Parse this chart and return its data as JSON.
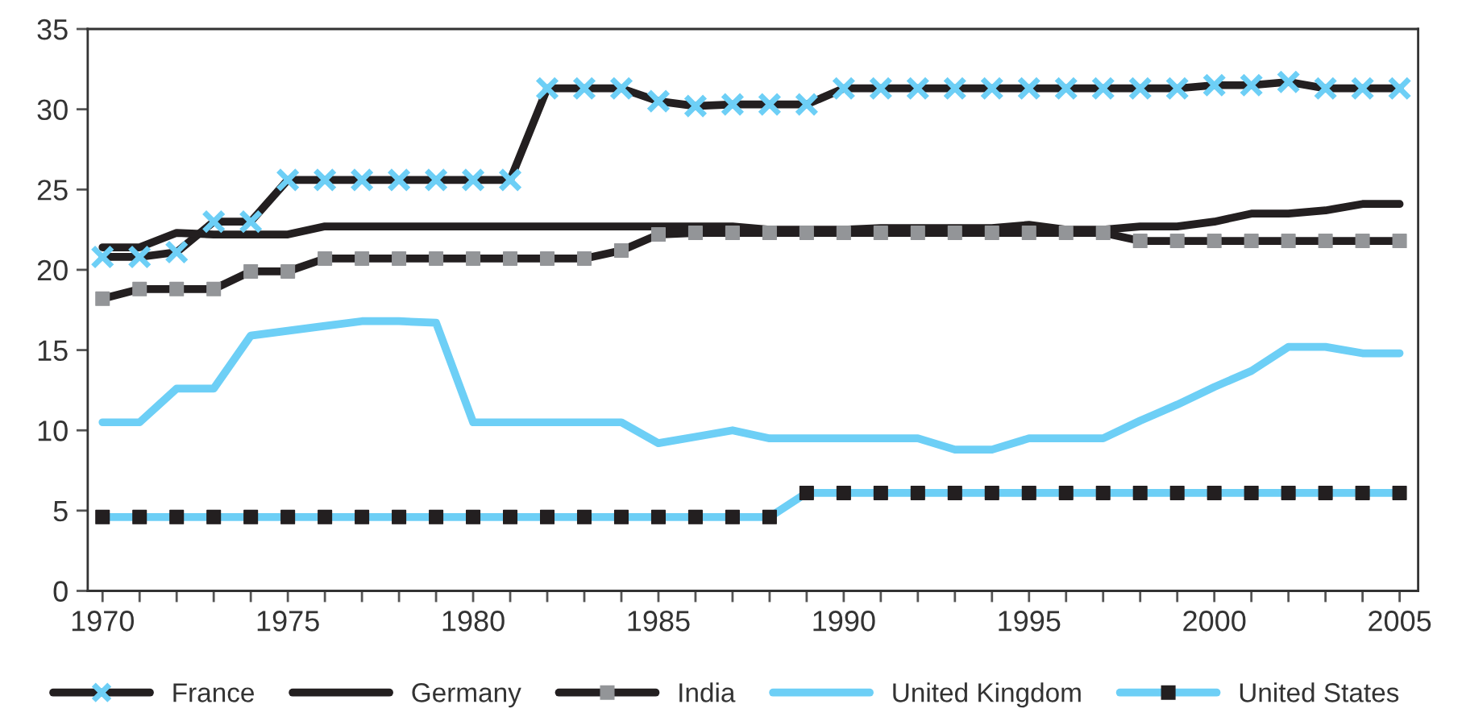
{
  "chart_data": {
    "type": "line",
    "x": [
      1970,
      1971,
      1972,
      1973,
      1974,
      1975,
      1976,
      1977,
      1978,
      1979,
      1980,
      1981,
      1982,
      1983,
      1984,
      1985,
      1986,
      1987,
      1988,
      1989,
      1990,
      1991,
      1992,
      1993,
      1994,
      1995,
      1996,
      1997,
      1998,
      1999,
      2000,
      2001,
      2002,
      2003,
      2004,
      2005
    ],
    "series": [
      {
        "name": "France",
        "color": "#231f20",
        "marker": "cross",
        "colors": [
          "#6dcff6",
          "#6dcff6",
          "#6dcff6",
          "#6dcff6",
          "#6dcff6",
          "#6dcff6",
          "#6dcff6",
          "#6dcff6",
          "#6dcff6",
          "#6dcff6",
          "#6dcff6",
          "#6dcff6",
          "#6dcff6",
          "#6dcff6",
          "#6dcff6",
          "#6dcff6",
          "#6dcff6",
          "#6dcff6",
          "#6dcff6",
          "#6dcff6",
          "#6dcff6",
          "#6dcff6",
          "#6dcff6",
          "#6dcff6",
          "#6dcff6",
          "#6dcff6",
          "#6dcff6",
          "#6dcff6",
          "#6dcff6",
          "#6dcff6",
          "#6dcff6",
          "#6dcff6",
          "#6dcff6",
          "#6dcff6",
          "#6dcff6",
          "#6dcff6"
        ],
        "values": [
          20.8,
          20.8,
          21.1,
          23.0,
          23.0,
          25.6,
          25.6,
          25.6,
          25.6,
          25.6,
          25.6,
          25.6,
          31.3,
          31.3,
          31.3,
          30.5,
          30.2,
          30.3,
          30.3,
          30.3,
          31.3,
          31.3,
          31.3,
          31.3,
          31.3,
          31.3,
          31.3,
          31.3,
          31.3,
          31.3,
          31.5,
          31.5,
          31.7,
          31.3,
          31.3,
          31.3
        ]
      },
      {
        "name": "Germany",
        "color": "#231f20",
        "marker": "none",
        "values": [
          21.4,
          21.4,
          22.3,
          22.2,
          22.2,
          22.2,
          22.7,
          22.7,
          22.7,
          22.7,
          22.7,
          22.7,
          22.7,
          22.7,
          22.7,
          22.7,
          22.7,
          22.7,
          22.5,
          22.5,
          22.5,
          22.6,
          22.6,
          22.6,
          22.6,
          22.8,
          22.5,
          22.5,
          22.7,
          22.7,
          23.0,
          23.5,
          23.5,
          23.7,
          24.1,
          24.1
        ]
      },
      {
        "name": "India",
        "color": "#231f20",
        "marker": "square",
        "colors": [
          "#939598",
          "#939598",
          "#939598",
          "#939598",
          "#939598",
          "#939598",
          "#939598",
          "#939598",
          "#939598",
          "#939598",
          "#939598",
          "#939598",
          "#939598",
          "#939598",
          "#939598",
          "#939598",
          "#939598",
          "#939598",
          "#939598",
          "#939598",
          "#939598",
          "#939598",
          "#939598",
          "#939598",
          "#939598",
          "#939598",
          "#939598",
          "#939598",
          "#939598",
          "#939598",
          "#939598",
          "#939598",
          "#939598",
          "#939598",
          "#939598",
          "#939598"
        ],
        "values": [
          18.2,
          18.8,
          18.8,
          18.8,
          19.9,
          19.9,
          20.7,
          20.7,
          20.7,
          20.7,
          20.7,
          20.7,
          20.7,
          20.7,
          21.2,
          22.2,
          22.3,
          22.3,
          22.3,
          22.3,
          22.3,
          22.3,
          22.3,
          22.3,
          22.3,
          22.3,
          22.3,
          22.3,
          21.8,
          21.8,
          21.8,
          21.8,
          21.8,
          21.8,
          21.8,
          21.8
        ]
      },
      {
        "name": "United Kingdom",
        "color": "#6dcff6",
        "marker": "none",
        "values": [
          10.5,
          10.5,
          12.6,
          12.6,
          15.9,
          16.2,
          16.5,
          16.8,
          16.8,
          16.7,
          10.5,
          10.5,
          10.5,
          10.5,
          10.5,
          9.2,
          9.6,
          10.0,
          9.5,
          9.5,
          9.5,
          9.5,
          9.5,
          8.8,
          8.8,
          9.5,
          9.5,
          9.5,
          10.6,
          11.6,
          12.7,
          13.7,
          15.2,
          15.2,
          14.8,
          14.8
        ]
      },
      {
        "name": "United States",
        "color": "#6dcff6",
        "marker": "square",
        "colors": [
          "#231f20",
          "#231f20",
          "#231f20",
          "#231f20",
          "#231f20",
          "#231f20",
          "#231f20",
          "#231f20",
          "#231f20",
          "#231f20",
          "#231f20",
          "#231f20",
          "#231f20",
          "#231f20",
          "#231f20",
          "#231f20",
          "#231f20",
          "#231f20",
          "#231f20",
          "#231f20",
          "#231f20",
          "#231f20",
          "#231f20",
          "#231f20",
          "#231f20",
          "#231f20",
          "#231f20",
          "#231f20",
          "#231f20",
          "#231f20",
          "#231f20",
          "#231f20",
          "#231f20",
          "#231f20",
          "#231f20",
          "#231f20"
        ],
        "values": [
          4.6,
          4.6,
          4.6,
          4.6,
          4.6,
          4.6,
          4.6,
          4.6,
          4.6,
          4.6,
          4.6,
          4.6,
          4.6,
          4.6,
          4.6,
          4.6,
          4.6,
          4.6,
          4.6,
          6.1,
          6.1,
          6.1,
          6.1,
          6.1,
          6.1,
          6.1,
          6.1,
          6.1,
          6.1,
          6.1,
          6.1,
          6.1,
          6.1,
          6.1,
          6.1,
          6.1
        ]
      }
    ],
    "xlim": [
      1969.6,
      2005.5
    ],
    "xticks": [
      1970,
      {
        "value": 1971,
        "label": null
      },
      {
        "value": 1972,
        "label": null
      },
      {
        "value": 1973,
        "label": null
      },
      {
        "value": 1974,
        "label": null
      },
      1975,
      {
        "value": 1976,
        "label": null
      },
      {
        "value": 1977,
        "label": null
      },
      {
        "value": 1978,
        "label": null
      },
      {
        "value": 1979,
        "label": null
      },
      1980,
      {
        "value": 1981,
        "label": null
      },
      {
        "value": 1982,
        "label": null
      },
      {
        "value": 1983,
        "label": null
      },
      {
        "value": 1984,
        "label": null
      },
      1985,
      {
        "value": 1986,
        "label": null
      },
      {
        "value": 1987,
        "label": null
      },
      {
        "value": 1988,
        "label": null
      },
      {
        "value": 1989,
        "label": null
      },
      1990,
      {
        "value": 1991,
        "label": null
      },
      {
        "value": 1992,
        "label": null
      },
      {
        "value": 1993,
        "label": null
      },
      {
        "value": 1994,
        "label": null
      },
      1995,
      {
        "value": 1996,
        "label": null
      },
      {
        "value": 1997,
        "label": null
      },
      {
        "value": 1998,
        "label": null
      },
      {
        "value": 1999,
        "label": null
      },
      2000,
      {
        "value": 2001,
        "label": null
      },
      {
        "value": 2002,
        "label": null
      },
      {
        "value": 2003,
        "label": null
      },
      {
        "value": 2004,
        "label": null
      },
      2005
    ],
    "ylim": [
      0,
      35
    ],
    "yticks": [
      0,
      5,
      10,
      15,
      20,
      25,
      30,
      35
    ],
    "grid": false,
    "legend": "bottom",
    "line_style": "solid"
  }
}
